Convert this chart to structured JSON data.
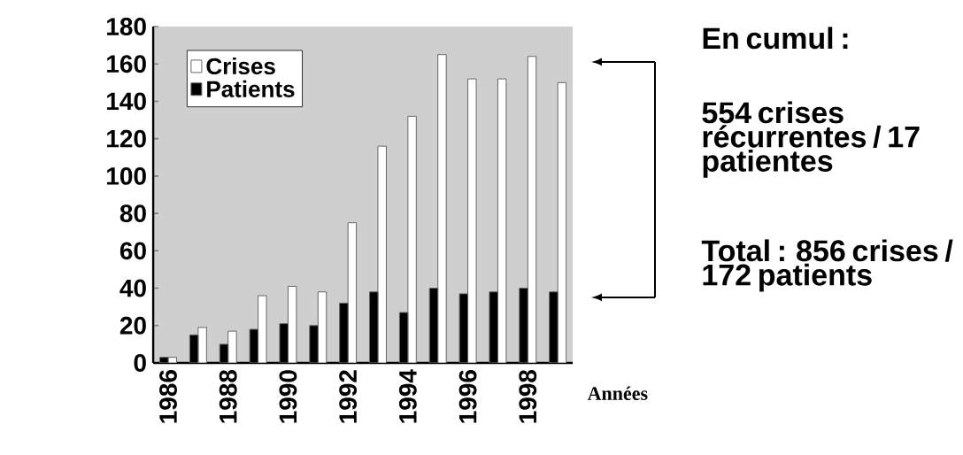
{
  "chart_data": {
    "type": "bar",
    "xlabel": "Années",
    "categories": [
      "1986",
      null,
      "1988",
      null,
      "1990",
      null,
      "1992",
      null,
      "1994",
      null,
      "1996",
      null,
      "1998",
      null
    ],
    "series": [
      {
        "name": "Crises",
        "color": "#ffffff",
        "values": [
          3,
          19,
          17,
          36,
          41,
          38,
          75,
          116,
          132,
          165,
          152,
          152,
          164,
          150
        ]
      },
      {
        "name": "Patients",
        "color": "#000000",
        "values": [
          3,
          15,
          10,
          18,
          21,
          20,
          32,
          38,
          27,
          40,
          37,
          38,
          40,
          38
        ]
      }
    ],
    "ylim": [
      0,
      180
    ],
    "yticks": [
      0,
      20,
      40,
      60,
      80,
      100,
      120,
      140,
      160,
      180
    ],
    "legend": "top left",
    "grid": false,
    "annotations": [
      "En cumul :",
      "554 crises récurrentes / 17 patientes",
      "Total : 856 crises / 172 patients"
    ]
  }
}
